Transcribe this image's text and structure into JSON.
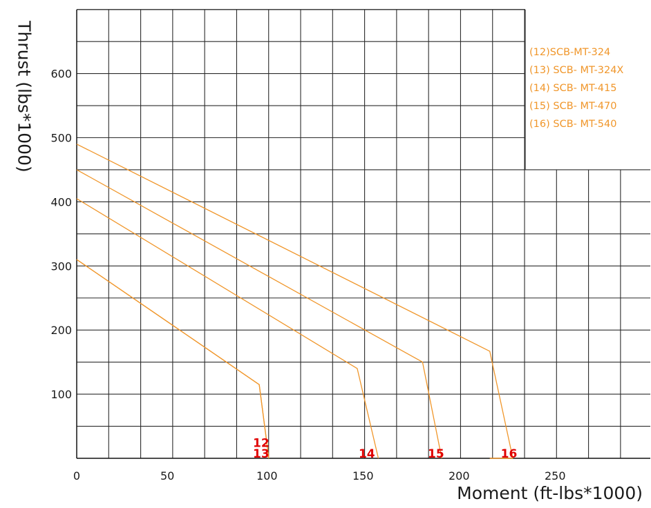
{
  "chart_data": {
    "type": "line",
    "title": "",
    "xlabel": "Moment (ft-lbs*1000)",
    "ylabel": "Thrust (lbs*1000)",
    "xlim": [
      0,
      300
    ],
    "ylim": [
      0,
      700
    ],
    "x_ticks": [
      "0",
      "50",
      "100",
      "150",
      "200",
      "250"
    ],
    "y_ticks": [
      "100",
      "200",
      "300",
      "400",
      "500",
      "600"
    ],
    "grid": true,
    "line_color": "#f0962a",
    "legend_position": "top-right",
    "legend": [
      "(12)SCB-MT-324",
      "(13) SCB- MT-324X",
      "(14) SCB- MT-415",
      "(15) SCB- MT-470",
      "(16) SCB- MT-540"
    ],
    "series": [
      {
        "name": "12",
        "points": [
          [
            0,
            310
          ],
          [
            95,
            115
          ],
          [
            100,
            0
          ]
        ]
      },
      {
        "name": "13",
        "points": [
          [
            0,
            310
          ],
          [
            95,
            115
          ],
          [
            100,
            0
          ]
        ]
      },
      {
        "name": "14",
        "points": [
          [
            0,
            405
          ],
          [
            146,
            140
          ],
          [
            157,
            0
          ]
        ]
      },
      {
        "name": "15",
        "points": [
          [
            0,
            450
          ],
          [
            180,
            150
          ],
          [
            190,
            0
          ]
        ]
      },
      {
        "name": "16",
        "points": [
          [
            0,
            490
          ],
          [
            215,
            167
          ],
          [
            227,
            0
          ]
        ]
      }
    ],
    "curve_labels": [
      "12",
      "13",
      "14",
      "15",
      "16"
    ]
  }
}
